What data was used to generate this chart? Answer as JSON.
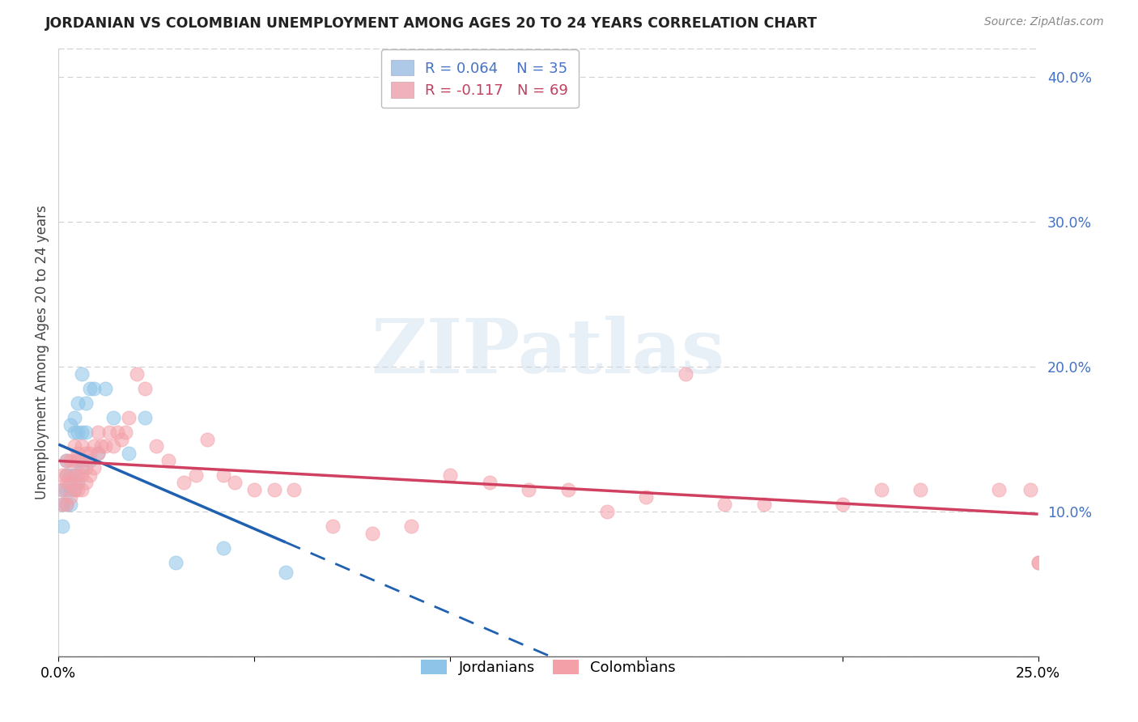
{
  "title": "JORDANIAN VS COLOMBIAN UNEMPLOYMENT AMONG AGES 20 TO 24 YEARS CORRELATION CHART",
  "source": "Source: ZipAtlas.com",
  "ylabel": "Unemployment Among Ages 20 to 24 years",
  "xlim": [
    0.0,
    0.25
  ],
  "ylim": [
    0.0,
    0.42
  ],
  "yticks": [
    0.0,
    0.1,
    0.2,
    0.3,
    0.4
  ],
  "ytick_labels": [
    "",
    "10.0%",
    "20.0%",
    "30.0%",
    "40.0%"
  ],
  "xtick_positions": [
    0.0,
    0.05,
    0.1,
    0.15,
    0.2,
    0.25
  ],
  "xtick_labels": [
    "0.0%",
    "",
    "",
    "",
    "",
    "25.0%"
  ],
  "legend_label1": "Jordanians",
  "legend_label2": "Colombians",
  "jordan_color": "#8dc4e8",
  "colombia_color": "#f4a0a8",
  "jordan_line_color": "#2060b0",
  "colombia_line_color": "#d04060",
  "watermark_text": "ZIPatlas",
  "jordan_R": 0.064,
  "jordan_N": 35,
  "colombia_R": -0.117,
  "colombia_N": 69,
  "jordan_x": [
    0.001,
    0.001,
    0.001,
    0.002,
    0.002,
    0.002,
    0.002,
    0.003,
    0.003,
    0.003,
    0.003,
    0.004,
    0.004,
    0.004,
    0.004,
    0.005,
    0.005,
    0.005,
    0.005,
    0.006,
    0.006,
    0.006,
    0.007,
    0.007,
    0.008,
    0.008,
    0.009,
    0.01,
    0.012,
    0.014,
    0.018,
    0.022,
    0.03,
    0.042,
    0.058
  ],
  "jordan_y": [
    0.105,
    0.115,
    0.09,
    0.105,
    0.115,
    0.125,
    0.135,
    0.105,
    0.115,
    0.125,
    0.16,
    0.115,
    0.125,
    0.155,
    0.165,
    0.12,
    0.135,
    0.155,
    0.175,
    0.13,
    0.155,
    0.195,
    0.155,
    0.175,
    0.135,
    0.185,
    0.185,
    0.14,
    0.185,
    0.165,
    0.14,
    0.165,
    0.065,
    0.075,
    0.058
  ],
  "colombia_x": [
    0.001,
    0.001,
    0.001,
    0.002,
    0.002,
    0.002,
    0.002,
    0.003,
    0.003,
    0.003,
    0.004,
    0.004,
    0.004,
    0.004,
    0.005,
    0.005,
    0.005,
    0.006,
    0.006,
    0.006,
    0.006,
    0.007,
    0.007,
    0.007,
    0.008,
    0.008,
    0.009,
    0.009,
    0.01,
    0.01,
    0.011,
    0.012,
    0.013,
    0.014,
    0.015,
    0.016,
    0.017,
    0.018,
    0.02,
    0.022,
    0.025,
    0.028,
    0.032,
    0.035,
    0.038,
    0.042,
    0.045,
    0.05,
    0.055,
    0.06,
    0.07,
    0.08,
    0.09,
    0.1,
    0.11,
    0.12,
    0.13,
    0.14,
    0.15,
    0.16,
    0.17,
    0.18,
    0.2,
    0.21,
    0.22,
    0.24,
    0.248,
    0.25,
    0.25
  ],
  "colombia_y": [
    0.105,
    0.115,
    0.125,
    0.105,
    0.12,
    0.125,
    0.135,
    0.11,
    0.12,
    0.135,
    0.115,
    0.125,
    0.135,
    0.145,
    0.115,
    0.125,
    0.14,
    0.115,
    0.125,
    0.135,
    0.145,
    0.12,
    0.13,
    0.14,
    0.125,
    0.14,
    0.13,
    0.145,
    0.14,
    0.155,
    0.145,
    0.145,
    0.155,
    0.145,
    0.155,
    0.15,
    0.155,
    0.165,
    0.195,
    0.185,
    0.145,
    0.135,
    0.12,
    0.125,
    0.15,
    0.125,
    0.12,
    0.115,
    0.115,
    0.115,
    0.09,
    0.085,
    0.09,
    0.125,
    0.12,
    0.115,
    0.115,
    0.1,
    0.11,
    0.195,
    0.105,
    0.105,
    0.105,
    0.115,
    0.115,
    0.115,
    0.115,
    0.065,
    0.065
  ]
}
